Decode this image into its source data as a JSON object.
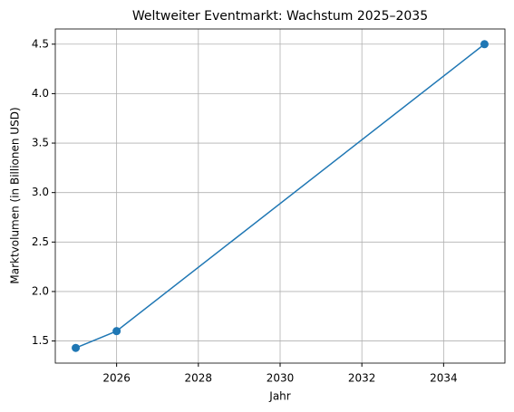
{
  "chart_data": {
    "type": "line",
    "title": "Weltweiter Eventmarkt: Wachstum 2025–2035",
    "x_label": "Jahr",
    "y_label": "Marktvolumen (in Billionen USD)",
    "x": [
      2025,
      2026,
      2035
    ],
    "series": [
      {
        "name": "Marktvolumen",
        "color": "#1f77b4",
        "values": [
          1.43,
          1.6,
          4.5
        ]
      }
    ],
    "xlim": [
      2024.5,
      2035.5
    ],
    "xticks": [
      2026,
      2028,
      2030,
      2032,
      2034
    ],
    "ylim": [
      1.2765,
      4.6535
    ],
    "yticks": [
      1.5,
      {
        "value": 2.0,
        "label": "2.0"
      },
      2.5,
      {
        "value": 3.0,
        "label": "3.0"
      },
      3.5,
      {
        "value": 4.0,
        "label": "4.0"
      },
      4.5
    ],
    "grid": true,
    "markers": true
  }
}
